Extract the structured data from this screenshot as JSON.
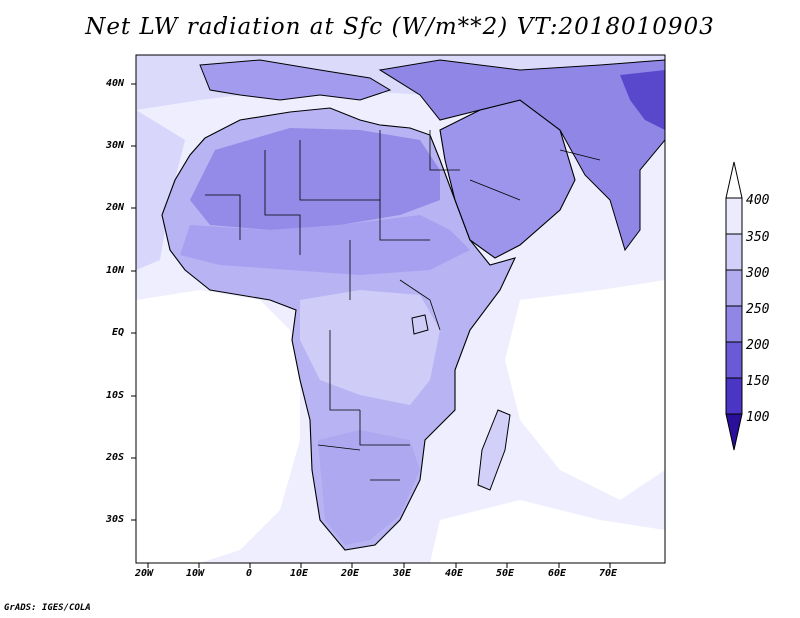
{
  "title": "Net LW radiation at Sfc (W/m**2) VT:2018010903",
  "footer": "GrADS: IGES/COLA",
  "axes": {
    "x_ticks": [
      "20W",
      "10W",
      "0",
      "10E",
      "20E",
      "30E",
      "40E",
      "50E",
      "60E",
      "70E"
    ],
    "y_ticks": [
      "40N",
      "30N",
      "20N",
      "10N",
      "EQ",
      "10S",
      "20S",
      "30S"
    ]
  },
  "colorbar": {
    "levels": [
      "100",
      "150",
      "200",
      "250",
      "300",
      "350",
      "400"
    ],
    "colors": [
      "#2a0f9a",
      "#4a35c4",
      "#6a5ad6",
      "#8f86e6",
      "#b1acf0",
      "#d2d0f8",
      "#ebebfd"
    ],
    "over_color": "#ffffff",
    "under_color": "#2a0f9a"
  },
  "map": {
    "region": "Africa",
    "lon_range": [
      -23,
      80
    ],
    "lat_range": [
      -37,
      45
    ],
    "field_colors": {
      "ocean": "#eeeefe",
      "high_flux": "#ffffff",
      "land_low": "#d8d6fb",
      "land_mid": "#b8b3f3",
      "land_high": "#9a93ec",
      "desert": "#8a80e6",
      "outline": "#000000"
    }
  }
}
